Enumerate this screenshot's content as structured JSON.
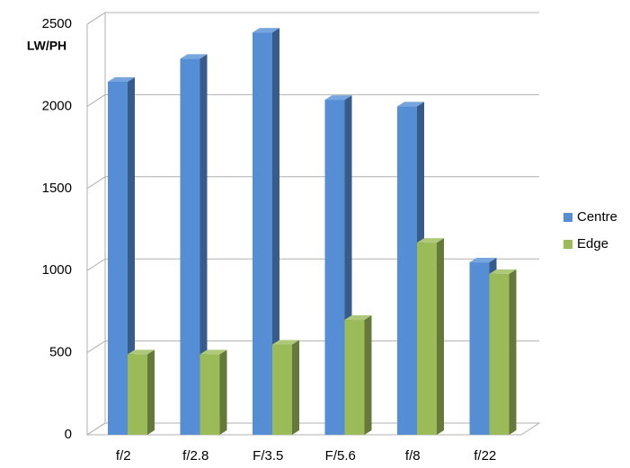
{
  "chart_data": {
    "type": "bar3d",
    "y_label": "LW/PH",
    "categories": [
      "f/2",
      "f/2.8",
      "F/3.5",
      "F/5.6",
      "f/8",
      "f/22"
    ],
    "series": [
      {
        "name": "Centre",
        "color": "#558ed5",
        "values": [
          2150,
          2290,
          2450,
          2040,
          2000,
          1050
        ]
      },
      {
        "name": "Edge",
        "color": "#9bbb59",
        "values": [
          490,
          490,
          550,
          700,
          1170,
          980
        ]
      }
    ],
    "ylim": [
      0,
      2500
    ],
    "yticks": [
      0,
      500,
      1000,
      1500,
      2000,
      2500
    ],
    "grid": true,
    "legend": "right"
  }
}
